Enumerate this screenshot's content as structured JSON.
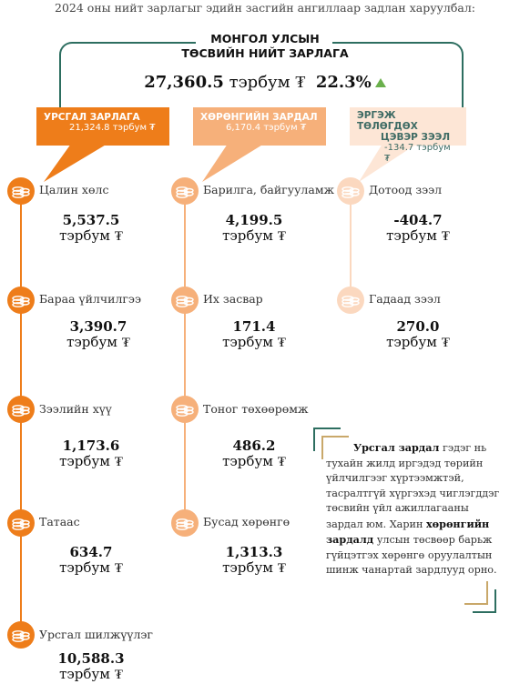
{
  "header": "2024 оны нийт зарлагыг эдийн засгийн ангиллаар задлан харуулбал:",
  "main": {
    "title_line1": "МОНГОЛ УЛСЫН",
    "title_line2": "ТӨСВИЙН НИЙТ ЗАРЛАГА",
    "total_value": "27,360.5",
    "total_unit": "тэрбум ₮",
    "total_pct": "22.3%"
  },
  "categories": [
    {
      "label": "УРСГАЛ ЗАРЛАГА",
      "value": "21,324.8 тэрбум ₮",
      "color": "#ee7d1a"
    },
    {
      "label": "ХӨРӨНГИЙН ЗАРДАЛ",
      "value": "6,170.4 тэрбум ₮",
      "color": "#f6b07a"
    },
    {
      "label_line1": "ЭРГЭЖ ТӨЛӨГДӨХ",
      "label_line2": "ЦЭВЭР ЗЭЭЛ",
      "value": "-134.7 тэрбум ₮",
      "color": "#fde6d6"
    }
  ],
  "columns": [
    {
      "color": "#ee7d1a",
      "items": [
        {
          "name": "Цалин хөлс",
          "value": "5,537.5",
          "unit": "тэрбум ₮",
          "icon": "coin-stack-icon"
        },
        {
          "name": "Бараа үйлчилгээ",
          "value": "3,390.7",
          "unit": "тэрбум ₮",
          "icon": "coin-stack-icon"
        },
        {
          "name": "Зээлийн хүү",
          "value": "1,173.6",
          "unit": "тэрбум ₮",
          "icon": "coin-stack-icon"
        },
        {
          "name": "Татаас",
          "value": "634.7",
          "unit": "тэрбум ₮",
          "icon": "coin-stack-icon"
        },
        {
          "name": "Урсгал шилжүүлэг",
          "value": "10,588.3",
          "unit": "тэрбум ₮",
          "icon": "coin-stack-icon"
        }
      ]
    },
    {
      "color": "#f6b07a",
      "items": [
        {
          "name": "Барилга, байгууламж",
          "value": "4,199.5",
          "unit": "тэрбум ₮",
          "icon": "coin-stack-icon"
        },
        {
          "name": "Их засвар",
          "value": "171.4",
          "unit": "тэрбум ₮",
          "icon": "coin-stack-icon"
        },
        {
          "name": "Тоног төхөөрөмж",
          "value": "486.2",
          "unit": "тэрбум ₮",
          "icon": "coin-stack-icon"
        },
        {
          "name": "Бусад хөрөнгө",
          "value": "1,313.3",
          "unit": "тэрбум ₮",
          "icon": "coin-stack-icon"
        }
      ]
    },
    {
      "color": "#fbd8bf",
      "items": [
        {
          "name": "Дотоод зээл",
          "value": "-404.7",
          "unit": "тэрбум ₮",
          "icon": "coin-stack-icon"
        },
        {
          "name": "Гадаад зээл",
          "value": "270.0",
          "unit": "тэрбум ₮",
          "icon": "coin-stack-icon"
        }
      ]
    }
  ],
  "note": {
    "t1": "Урсгал зардал",
    "t2": " гэдэг нь тухайн жилд иргэдэд төрийн үйлчилгээг хүртээмжтэй, тасралтгүй хүргэхэд чиглэгддэг төсвийн үйл ажиллагааны зардал юм. Харин ",
    "t3": "хөрөнгийн зардалд",
    "t4": " улсын төсвөөр барьж гүйцэтгэх хөрөнгө оруулалтын шинж чанартай зардлууд орно."
  },
  "colors": {
    "accent_green": "#2d6e60",
    "up_arrow": "#6ab04c"
  }
}
